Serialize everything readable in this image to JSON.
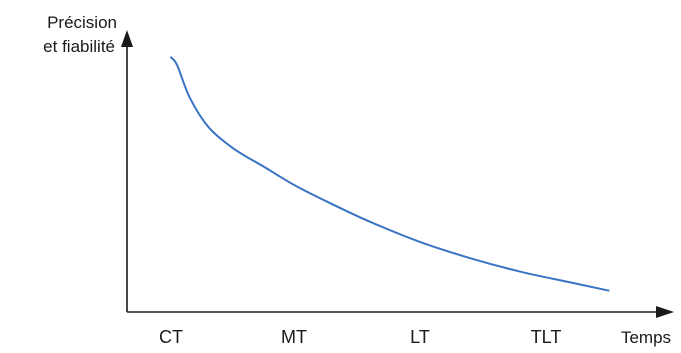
{
  "chart_data": {
    "type": "line",
    "title": "",
    "ylabel_lines": [
      "Précision",
      "et fiabilité"
    ],
    "xlabel": "Temps",
    "categories": [
      "CT",
      "MT",
      "LT",
      "TLT"
    ],
    "ylim": [
      0,
      10
    ],
    "xlim": [
      0,
      3.5
    ],
    "grid": false,
    "legend": "none",
    "series": [
      {
        "x": [
          0,
          0.05,
          0.15,
          0.3,
          0.5,
          0.75,
          1.0,
          1.3,
          1.6,
          2.0,
          2.4,
          2.8,
          3.2,
          3.5
        ],
        "y": [
          9.5,
          9.2,
          8.0,
          6.9,
          6.1,
          5.4,
          4.7,
          4.0,
          3.35,
          2.6,
          2.0,
          1.5,
          1.1,
          0.8
        ],
        "color": "#3a74c4"
      }
    ],
    "axis_color": "#1a1a1a"
  }
}
